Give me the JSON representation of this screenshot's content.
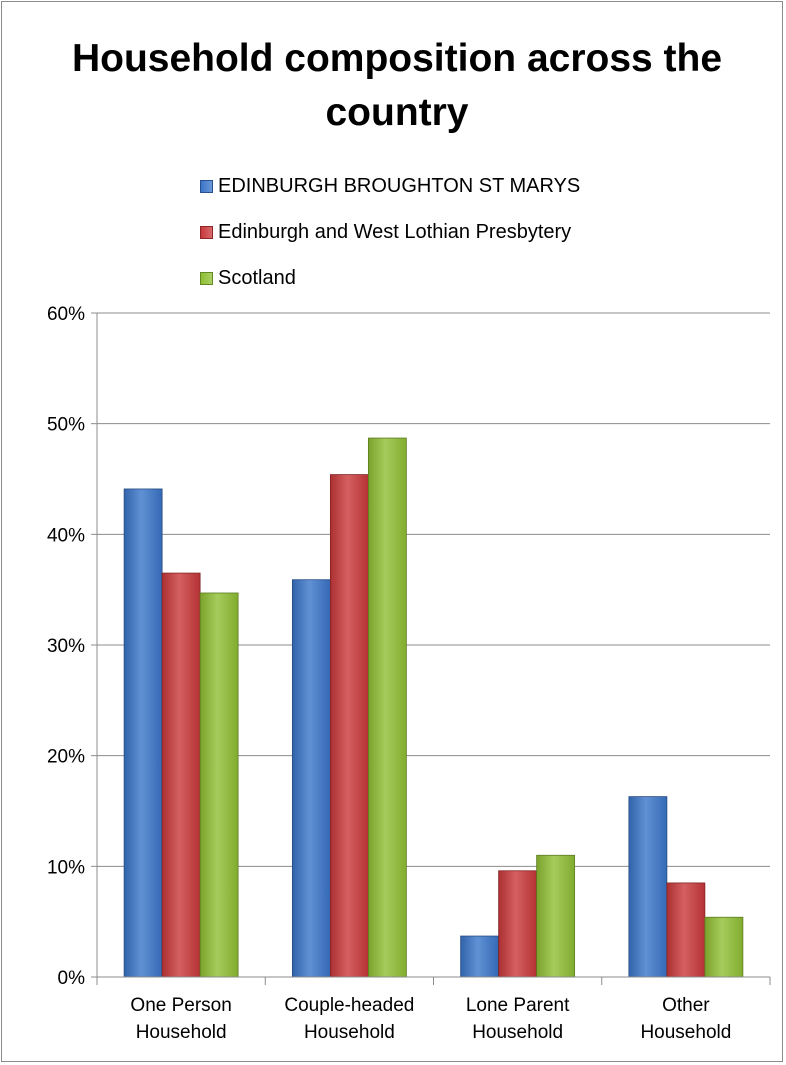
{
  "chart_data": {
    "type": "bar",
    "title": "Household composition across the country",
    "categories": [
      [
        "One Person",
        "Household"
      ],
      [
        "Couple-headed",
        "Household"
      ],
      [
        "Lone Parent",
        "Household"
      ],
      [
        "Other",
        "Household"
      ]
    ],
    "series": [
      {
        "name": "EDINBURGH BROUGHTON ST MARYS",
        "color": "#3a75c9",
        "values": [
          44.1,
          35.9,
          3.7,
          16.3
        ]
      },
      {
        "name": "Edinburgh and West Lothian Presbytery",
        "color": "#c9383a",
        "values": [
          36.5,
          45.4,
          9.6,
          8.5
        ]
      },
      {
        "name": "Scotland",
        "color": "#8fbf33",
        "values": [
          34.7,
          48.7,
          11.0,
          5.4
        ]
      }
    ],
    "yticks": [
      "0%",
      "10%",
      "20%",
      "30%",
      "40%",
      "50%",
      "60%"
    ],
    "ylim": [
      0,
      60
    ],
    "grid": true,
    "legend_position": "top"
  }
}
